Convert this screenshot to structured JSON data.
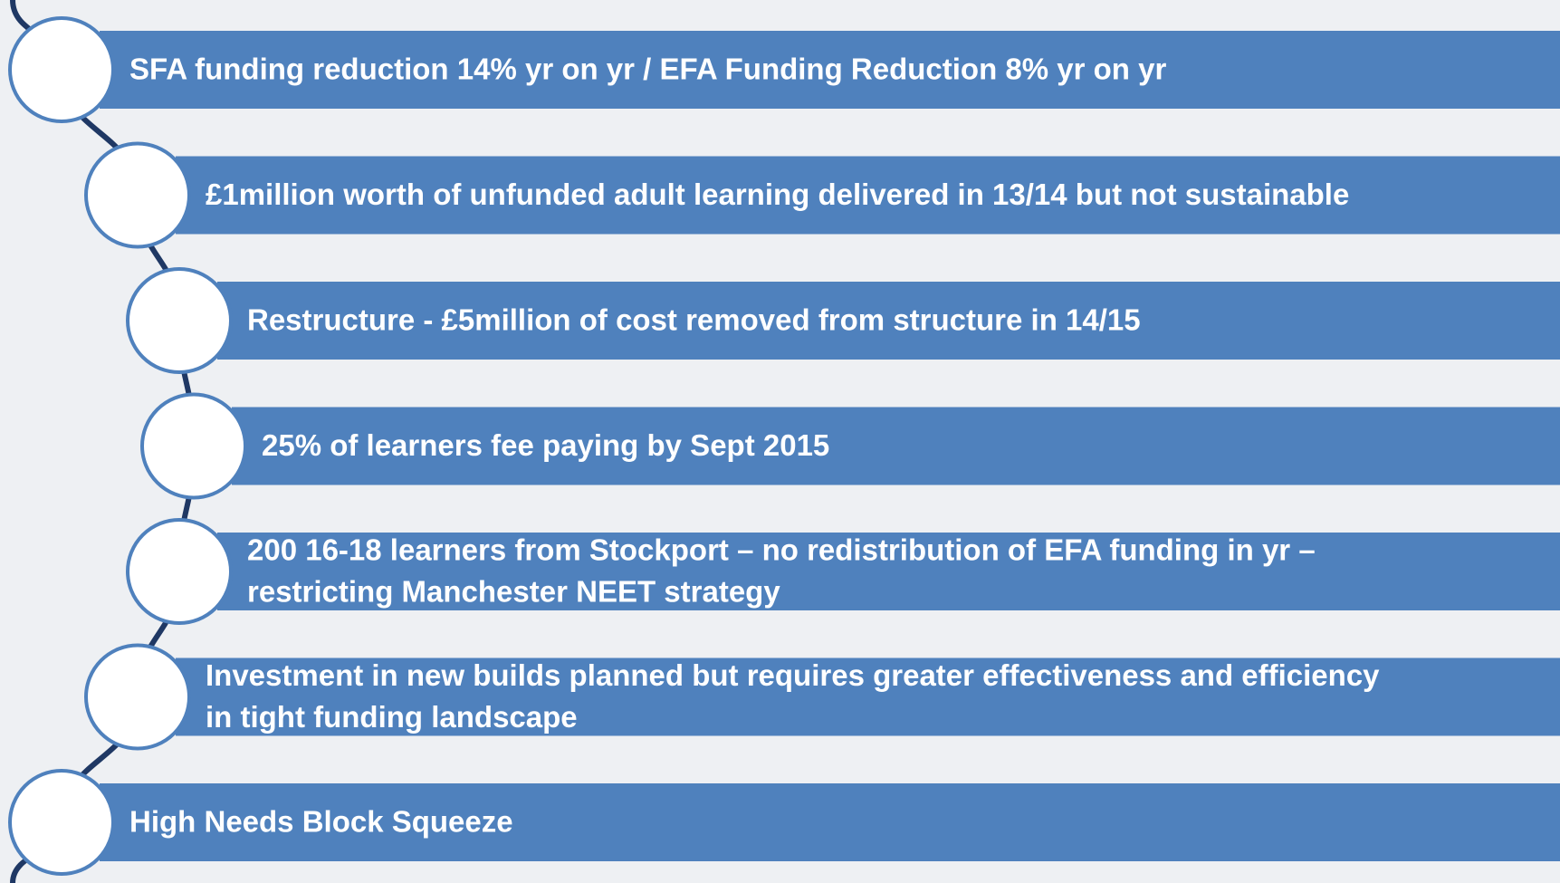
{
  "items": [
    [
      "SFA funding reduction 14% yr on yr / EFA Funding Reduction 8% yr on yr"
    ],
    [
      "£1million worth of unfunded adult learning delivered in 13/14  but not sustainable"
    ],
    [
      "Restructure - £5million of cost removed from structure in 14/15"
    ],
    [
      "25% of learners fee paying by Sept 2015"
    ],
    [
      "200 16-18 learners from Stockport – no redistribution of EFA funding in yr –",
      "restricting Manchester NEET strategy"
    ],
    [
      "Investment in new builds planned but requires greater effectiveness and efficiency",
      "in tight funding landscape"
    ],
    [
      "High Needs Block Squeeze"
    ]
  ]
}
